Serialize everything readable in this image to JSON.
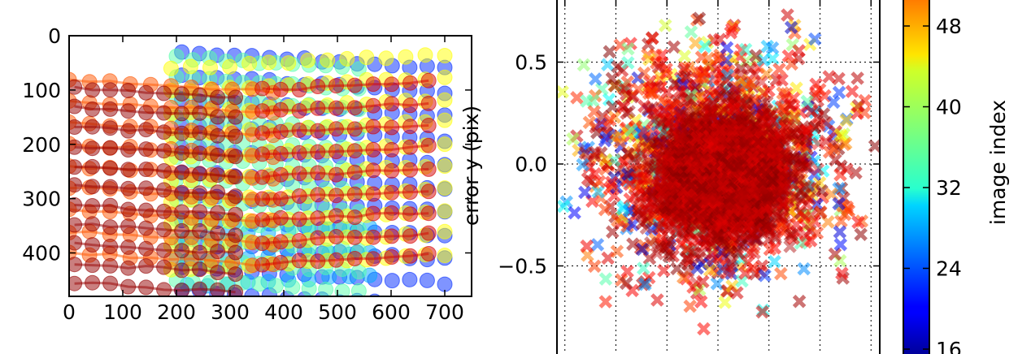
{
  "chart_data": [
    {
      "type": "scatter",
      "panel": "left",
      "title": "",
      "xlabel": "",
      "ylabel": "",
      "xlim": [
        0,
        750
      ],
      "ylim": [
        480,
        0
      ],
      "y_inverted": true,
      "x_ticks": [
        "0",
        "100",
        "200",
        "300",
        "400",
        "500",
        "600",
        "700"
      ],
      "x_tick_values": [
        0,
        100,
        200,
        300,
        400,
        500,
        600,
        700
      ],
      "y_ticks": [
        "0",
        "100",
        "200",
        "300",
        "400"
      ],
      "y_tick_values": [
        0,
        100,
        200,
        300,
        400
      ],
      "grid": false,
      "marker": "circle",
      "color_by": "image index",
      "layers": [
        {
          "color_value": 16,
          "x_range": [
            210,
            700
          ],
          "y_range": [
            30,
            470
          ],
          "cols": 16,
          "rows": 11
        },
        {
          "color_value": 22,
          "x_range": [
            220,
            560
          ],
          "y_range": [
            370,
            460
          ],
          "cols": 10,
          "rows": 3
        },
        {
          "color_value": 30,
          "x_range": [
            200,
            540
          ],
          "y_range": [
            40,
            450
          ],
          "cols": 12,
          "rows": 12
        },
        {
          "color_value": 38,
          "x_range": [
            190,
            700
          ],
          "y_range": [
            60,
            430
          ],
          "cols": 15,
          "rows": 10
        },
        {
          "color_value": 46,
          "x_range": [
            0,
            380
          ],
          "y_range": [
            80,
            400
          ],
          "cols": 11,
          "rows": 9
        },
        {
          "color_value": 52,
          "x_range": [
            360,
            670
          ],
          "y_range": [
            100,
            420
          ],
          "cols": 10,
          "rows": 9
        },
        {
          "color_value": 55,
          "x_range": [
            10,
            310
          ],
          "y_range": [
            95,
            455
          ],
          "cols": 10,
          "rows": 11
        }
      ]
    },
    {
      "type": "scatter",
      "panel": "right",
      "title": "",
      "xlabel": "",
      "ylabel": "error y (pix)",
      "xlim": [
        -0.95,
        0.95
      ],
      "ylim": [
        -0.95,
        0.95
      ],
      "y_ticks": [
        "0.5",
        "0.0",
        "−0.5"
      ],
      "y_tick_values": [
        0.5,
        0.0,
        -0.5
      ],
      "x_grid_lines": [
        -0.75,
        -0.5,
        -0.25,
        0.0,
        0.25,
        0.5,
        0.75
      ],
      "y_grid_lines": [
        0.5,
        0.0,
        -0.5
      ],
      "grid": true,
      "marker": "x",
      "color_by": "image index",
      "cloud": {
        "center": [
          0.0,
          0.0
        ],
        "core_sd": 0.12,
        "spread_sd": 0.28,
        "n_core": 2600,
        "n_spread": 1400
      }
    }
  ],
  "colorbar": {
    "label": "image index",
    "colormap": "jet",
    "range": [
      8,
      56
    ],
    "ticks": [
      "48",
      "40",
      "32",
      "24",
      "16"
    ],
    "tick_values": [
      48,
      40,
      32,
      24,
      16
    ]
  }
}
